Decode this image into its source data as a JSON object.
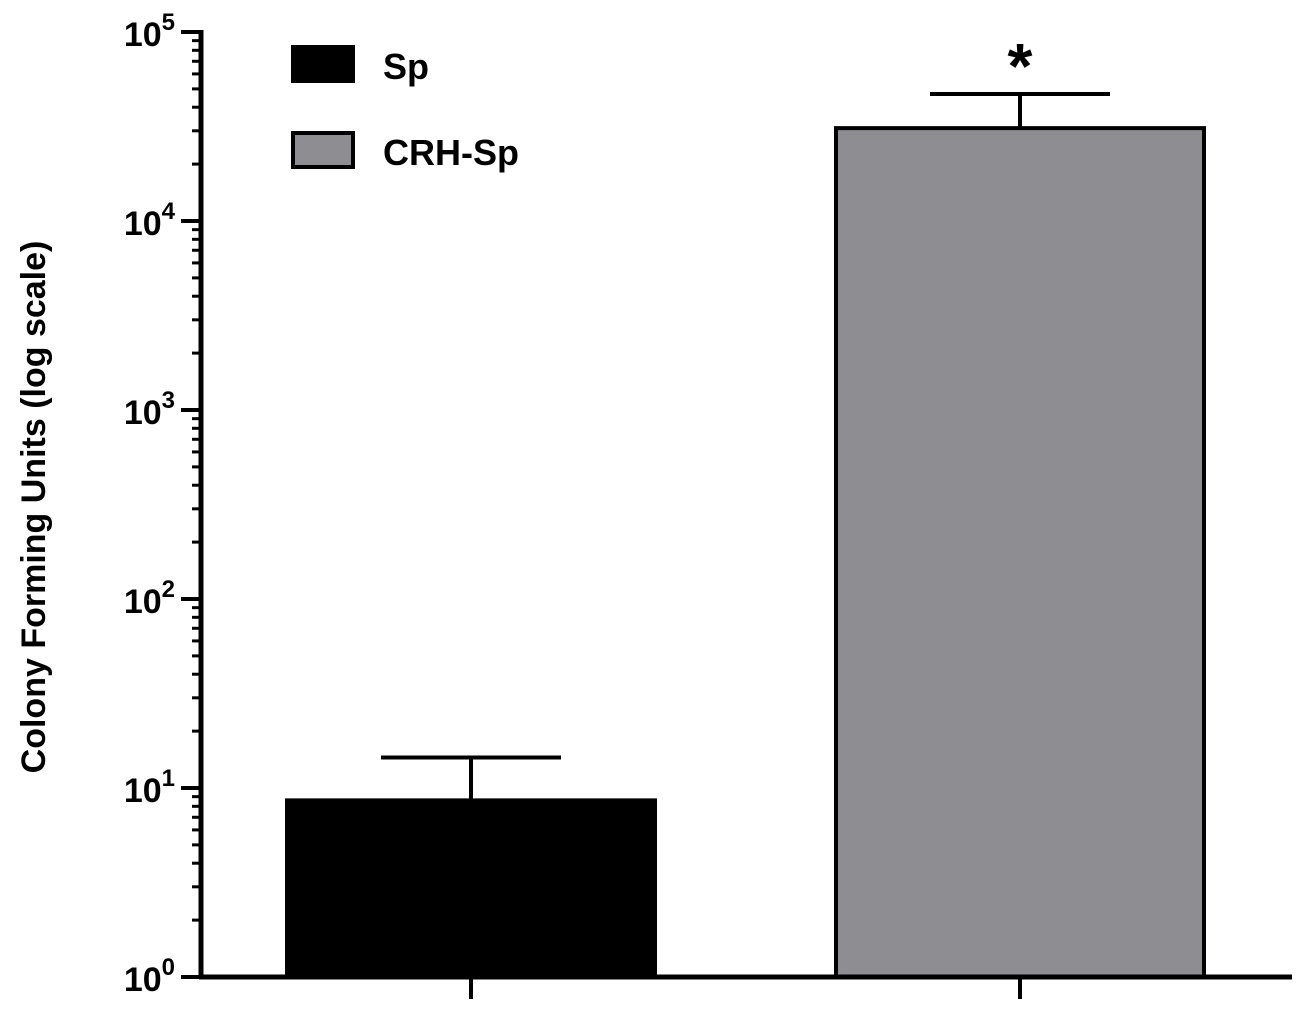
{
  "chart_data": {
    "type": "bar",
    "scale": "log",
    "ylabel": "Colony Forming Units (log scale)",
    "xlabel": "",
    "ylim": [
      1,
      100000
    ],
    "y_tick_values": [
      1,
      10,
      100,
      1000,
      10000,
      100000
    ],
    "y_tick_labels": [
      {
        "base": "10",
        "exp": "0"
      },
      {
        "base": "10",
        "exp": "1"
      },
      {
        "base": "10",
        "exp": "2"
      },
      {
        "base": "10",
        "exp": "3"
      },
      {
        "base": "10",
        "exp": "4"
      },
      {
        "base": "10",
        "exp": "5"
      }
    ],
    "minor_ticks": true,
    "grid": false,
    "categories": [
      "Sp",
      "CRH-Sp"
    ],
    "series": [
      {
        "name": "Sp",
        "value": 8.6,
        "error_upper": 14.5,
        "color": "#000000"
      },
      {
        "name": "CRH-Sp",
        "value": 31000,
        "error_upper": 47000,
        "color": "#8e8d91"
      }
    ],
    "annotations": [
      {
        "text": "*",
        "category": "CRH-Sp"
      }
    ],
    "legend": {
      "position": "top-left",
      "entries": [
        {
          "label": "Sp",
          "color": "#000000"
        },
        {
          "label": "CRH-Sp",
          "color": "#8e8d91"
        }
      ]
    }
  }
}
